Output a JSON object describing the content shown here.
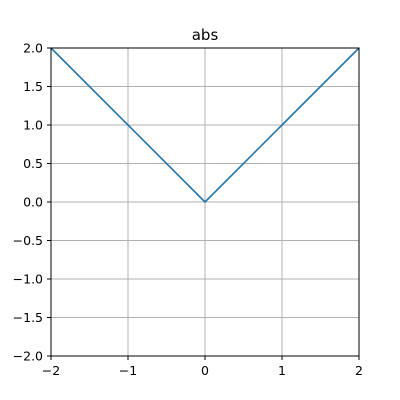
{
  "chart_data": {
    "type": "line",
    "title": "abs",
    "xlabel": "",
    "ylabel": "",
    "xlim": [
      -2,
      2
    ],
    "ylim": [
      -2,
      2
    ],
    "grid": true,
    "x_ticks": [
      -2,
      -1,
      0,
      1,
      2
    ],
    "x_tick_labels": [
      "−2",
      "−1",
      "0",
      "1",
      "2"
    ],
    "y_ticks": [
      -2.0,
      -1.5,
      -1.0,
      -0.5,
      0.0,
      0.5,
      1.0,
      1.5,
      2.0
    ],
    "y_tick_labels": [
      "−2.0",
      "−1.5",
      "−1.0",
      "−0.5",
      "0.0",
      "0.5",
      "1.0",
      "1.5",
      "2.0"
    ],
    "series": [
      {
        "name": "abs",
        "color": "#1f77b4",
        "x": [
          -2,
          -1,
          0,
          1,
          2
        ],
        "y": [
          2,
          1,
          0,
          1,
          2
        ]
      }
    ],
    "grid_color": "#b0b0b0",
    "axis_color": "#000000"
  }
}
